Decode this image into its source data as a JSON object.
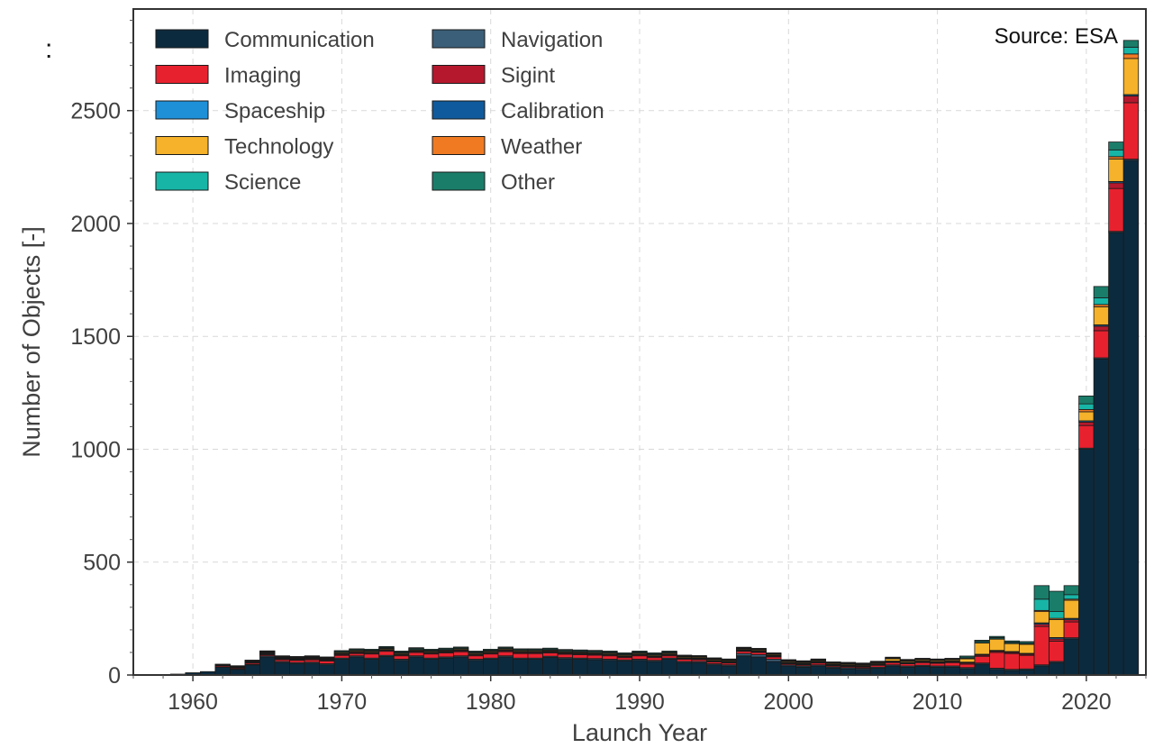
{
  "edge_text": ":",
  "chart_data": {
    "type": "bar",
    "stacked": true,
    "title": "",
    "xlabel": "Launch Year",
    "ylabel": "Number of Objects [-]",
    "xlim": [
      1956,
      2024
    ],
    "ylim": [
      0,
      2950
    ],
    "xticks": [
      1960,
      1970,
      1980,
      1990,
      2000,
      2010,
      2020
    ],
    "yticks": [
      0,
      500,
      1000,
      1500,
      2000,
      2500
    ],
    "grid": true,
    "legend_position": "top-left",
    "annotation": "Source: ESA",
    "categories": [
      1958,
      1959,
      1960,
      1961,
      1962,
      1963,
      1964,
      1965,
      1966,
      1967,
      1968,
      1969,
      1970,
      1971,
      1972,
      1973,
      1974,
      1975,
      1976,
      1977,
      1978,
      1979,
      1980,
      1981,
      1982,
      1983,
      1984,
      1985,
      1986,
      1987,
      1988,
      1989,
      1990,
      1991,
      1992,
      1993,
      1994,
      1995,
      1996,
      1997,
      1998,
      1999,
      2000,
      2001,
      2002,
      2003,
      2004,
      2005,
      2006,
      2007,
      2008,
      2009,
      2010,
      2011,
      2012,
      2013,
      2014,
      2015,
      2016,
      2017,
      2018,
      2019,
      2020,
      2021,
      2022,
      2023
    ],
    "series": [
      {
        "name": "Communication",
        "color": "#0c2a3e",
        "values": [
          2,
          4,
          10,
          15,
          35,
          25,
          45,
          80,
          55,
          50,
          52,
          45,
          70,
          80,
          70,
          82,
          65,
          80,
          70,
          75,
          80,
          65,
          70,
          80,
          70,
          70,
          78,
          72,
          70,
          68,
          65,
          62,
          65,
          60,
          70,
          55,
          55,
          45,
          40,
          85,
          80,
          60,
          40,
          35,
          40,
          30,
          28,
          25,
          30,
          40,
          35,
          38,
          35,
          35,
          28,
          48,
          25,
          20,
          22,
          40,
          55,
          160,
          1000,
          1400,
          1960,
          2280
        ]
      },
      {
        "name": "Navigation",
        "color": "#3b5f78",
        "values": [
          0,
          0,
          0,
          0,
          0,
          2,
          3,
          5,
          5,
          5,
          5,
          5,
          5,
          5,
          5,
          5,
          5,
          5,
          5,
          5,
          5,
          5,
          5,
          5,
          5,
          5,
          5,
          5,
          5,
          5,
          5,
          5,
          5,
          5,
          5,
          5,
          5,
          5,
          5,
          10,
          10,
          10,
          5,
          5,
          5,
          5,
          5,
          5,
          5,
          5,
          5,
          5,
          5,
          5,
          5,
          5,
          5,
          5,
          5,
          5,
          5,
          5,
          5,
          5,
          5,
          5
        ]
      },
      {
        "name": "Imaging",
        "color": "#e8212f",
        "values": [
          0,
          0,
          0,
          0,
          5,
          4,
          6,
          5,
          8,
          10,
          10,
          12,
          12,
          10,
          18,
          18,
          15,
          15,
          18,
          18,
          18,
          15,
          18,
          18,
          20,
          20,
          15,
          15,
          15,
          15,
          15,
          10,
          15,
          12,
          10,
          10,
          8,
          8,
          8,
          10,
          10,
          10,
          5,
          5,
          8,
          5,
          5,
          5,
          8,
          10,
          10,
          12,
          12,
          15,
          15,
          30,
          70,
          70,
          60,
          170,
          90,
          70,
          100,
          120,
          190,
          250
        ]
      },
      {
        "name": "Sigint",
        "color": "#b5182d",
        "values": [
          0,
          0,
          0,
          0,
          0,
          2,
          2,
          3,
          3,
          3,
          4,
          4,
          4,
          4,
          4,
          4,
          4,
          4,
          4,
          4,
          4,
          4,
          4,
          4,
          4,
          4,
          4,
          4,
          4,
          4,
          4,
          4,
          4,
          4,
          4,
          3,
          3,
          3,
          3,
          3,
          3,
          3,
          3,
          3,
          3,
          3,
          3,
          3,
          3,
          3,
          3,
          3,
          3,
          3,
          5,
          5,
          5,
          5,
          5,
          10,
          10,
          10,
          15,
          20,
          25,
          30
        ]
      },
      {
        "name": "Spaceship",
        "color": "#1e90d8",
        "values": [
          0,
          0,
          0,
          0,
          2,
          1,
          2,
          3,
          3,
          3,
          3,
          3,
          3,
          3,
          3,
          3,
          3,
          3,
          3,
          3,
          3,
          3,
          3,
          3,
          3,
          3,
          3,
          3,
          3,
          3,
          3,
          3,
          3,
          3,
          3,
          3,
          3,
          3,
          3,
          3,
          3,
          3,
          3,
          3,
          3,
          3,
          3,
          3,
          3,
          3,
          3,
          3,
          3,
          3,
          3,
          3,
          3,
          3,
          3,
          5,
          5,
          5,
          5,
          5,
          5,
          5
        ]
      },
      {
        "name": "Calibration",
        "color": "#0f5a9c",
        "values": [
          0,
          0,
          0,
          0,
          0,
          1,
          1,
          1,
          1,
          1,
          1,
          1,
          1,
          1,
          1,
          1,
          1,
          1,
          1,
          1,
          1,
          1,
          1,
          1,
          1,
          1,
          1,
          1,
          1,
          1,
          1,
          1,
          1,
          1,
          1,
          1,
          1,
          1,
          1,
          1,
          1,
          1,
          1,
          1,
          1,
          1,
          1,
          1,
          1,
          1,
          1,
          1,
          1,
          1,
          1,
          1,
          1,
          1,
          1,
          1,
          1,
          1,
          1,
          1,
          1,
          1
        ]
      },
      {
        "name": "Technology",
        "color": "#f5b22a",
        "values": [
          0,
          0,
          0,
          0,
          2,
          2,
          2,
          3,
          3,
          3,
          3,
          3,
          4,
          4,
          4,
          4,
          4,
          4,
          4,
          4,
          4,
          4,
          4,
          4,
          4,
          4,
          4,
          4,
          4,
          4,
          4,
          4,
          4,
          4,
          4,
          4,
          4,
          4,
          4,
          4,
          4,
          4,
          4,
          4,
          4,
          4,
          4,
          4,
          4,
          10,
          5,
          5,
          5,
          5,
          15,
          50,
          50,
          35,
          40,
          50,
          80,
          80,
          40,
          80,
          100,
          160
        ]
      },
      {
        "name": "Weather",
        "color": "#f07a22",
        "values": [
          0,
          0,
          0,
          0,
          0,
          1,
          1,
          1,
          1,
          1,
          1,
          1,
          1,
          1,
          1,
          1,
          1,
          1,
          1,
          1,
          1,
          1,
          1,
          1,
          1,
          1,
          1,
          1,
          1,
          1,
          1,
          1,
          1,
          1,
          1,
          1,
          1,
          1,
          1,
          1,
          1,
          1,
          1,
          1,
          1,
          1,
          1,
          1,
          1,
          1,
          1,
          1,
          1,
          1,
          2,
          2,
          2,
          2,
          2,
          5,
          5,
          5,
          10,
          10,
          10,
          20
        ]
      },
      {
        "name": "Science",
        "color": "#17b5a6",
        "values": [
          0,
          0,
          0,
          0,
          2,
          2,
          2,
          3,
          3,
          3,
          3,
          3,
          4,
          4,
          4,
          4,
          4,
          4,
          4,
          4,
          4,
          4,
          4,
          4,
          4,
          4,
          4,
          4,
          4,
          4,
          4,
          4,
          4,
          4,
          4,
          3,
          3,
          3,
          3,
          3,
          3,
          3,
          3,
          3,
          3,
          3,
          3,
          3,
          3,
          3,
          3,
          3,
          3,
          3,
          5,
          5,
          5,
          5,
          5,
          50,
          30,
          20,
          25,
          30,
          30,
          30
        ]
      },
      {
        "name": "Other",
        "color": "#1a7d6a",
        "values": [
          0,
          0,
          0,
          0,
          2,
          1,
          2,
          3,
          3,
          3,
          3,
          3,
          4,
          4,
          4,
          4,
          4,
          4,
          4,
          4,
          4,
          4,
          4,
          4,
          4,
          4,
          4,
          4,
          4,
          4,
          4,
          4,
          4,
          4,
          4,
          3,
          3,
          3,
          3,
          3,
          3,
          3,
          3,
          3,
          3,
          3,
          3,
          3,
          3,
          3,
          3,
          3,
          3,
          3,
          5,
          5,
          5,
          5,
          5,
          60,
          90,
          40,
          35,
          50,
          35,
          30
        ]
      }
    ],
    "legend_order": [
      "Communication",
      "Navigation",
      "Imaging",
      "Sigint",
      "Spaceship",
      "Calibration",
      "Technology",
      "Weather",
      "Science",
      "Other"
    ]
  }
}
